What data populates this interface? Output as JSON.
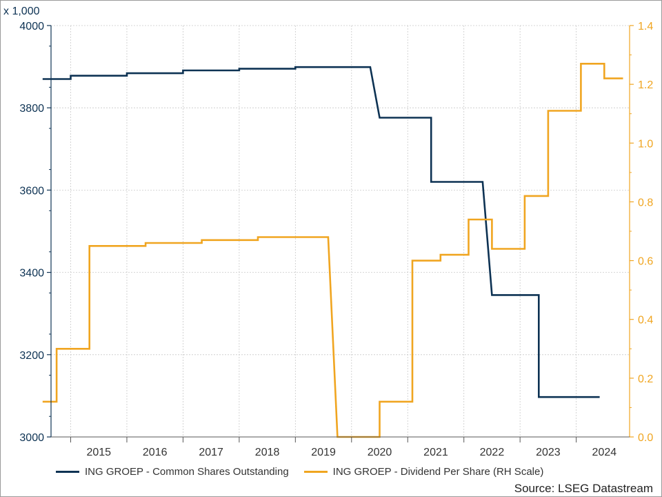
{
  "colors": {
    "left_series": "#0d3253",
    "right_series": "#f0a520",
    "left_axis": "#0d3253",
    "right_axis": "#f0a520",
    "grid": "#c8c8c8"
  },
  "source_text": "Source: LSEG Datastream",
  "chart_data": {
    "type": "line",
    "step": true,
    "x_tick_labels": [
      "2015",
      "2016",
      "2017",
      "2018",
      "2019",
      "2020",
      "2021",
      "2022",
      "2023",
      "2024"
    ],
    "xlim": [
      2014.65,
      2024.95
    ],
    "y_left": {
      "unit_label": "x 1,000",
      "ylim": [
        3000,
        4000
      ],
      "ticks": [
        "3000",
        "3200",
        "3400",
        "3600",
        "3800",
        "4000"
      ]
    },
    "y_right": {
      "ylim": [
        0,
        1.4
      ],
      "ticks": [
        "0.0",
        "0.2",
        "0.4",
        "0.6",
        "0.8",
        "1.0",
        "1.2",
        "1.4"
      ]
    },
    "grid": true,
    "legend_position": "bottom",
    "series": [
      {
        "name": "ING GROEP - Common Shares Outstanding",
        "axis": "left",
        "points": [
          [
            "2014-07",
            3870
          ],
          [
            "2015-01",
            3870
          ],
          [
            "2015-01",
            3878
          ],
          [
            "2016-01",
            3878
          ],
          [
            "2016-01",
            3884
          ],
          [
            "2017-01",
            3884
          ],
          [
            "2017-01",
            3891
          ],
          [
            "2018-01",
            3891
          ],
          [
            "2018-01",
            3895
          ],
          [
            "2019-01",
            3895
          ],
          [
            "2019-01",
            3899
          ],
          [
            "2020-05",
            3899
          ],
          [
            "2020-07",
            3776
          ],
          [
            "2021-06",
            3776
          ],
          [
            "2021-06",
            3620
          ],
          [
            "2022-05",
            3620
          ],
          [
            "2022-07",
            3345
          ],
          [
            "2023-05",
            3345
          ],
          [
            "2023-05",
            3097
          ],
          [
            "2024-06",
            3097
          ]
        ]
      },
      {
        "name": "ING GROEP - Dividend Per Share (RH Scale)",
        "axis": "right",
        "points": [
          [
            "2014-07",
            0.12
          ],
          [
            "2014-10",
            0.12
          ],
          [
            "2014-10",
            0.3
          ],
          [
            "2015-05",
            0.3
          ],
          [
            "2015-05",
            0.65
          ],
          [
            "2016-05",
            0.65
          ],
          [
            "2016-05",
            0.66
          ],
          [
            "2017-05",
            0.66
          ],
          [
            "2017-05",
            0.67
          ],
          [
            "2018-05",
            0.67
          ],
          [
            "2018-05",
            0.68
          ],
          [
            "2019-08",
            0.68
          ],
          [
            "2019-10",
            0.0
          ],
          [
            "2020-07",
            0.0
          ],
          [
            "2020-07",
            0.12
          ],
          [
            "2021-02",
            0.12
          ],
          [
            "2021-02",
            0.6
          ],
          [
            "2021-08",
            0.6
          ],
          [
            "2021-08",
            0.62
          ],
          [
            "2022-02",
            0.62
          ],
          [
            "2022-02",
            0.74
          ],
          [
            "2022-07",
            0.74
          ],
          [
            "2022-07",
            0.64
          ],
          [
            "2023-02",
            0.64
          ],
          [
            "2023-02",
            0.82
          ],
          [
            "2023-07",
            0.82
          ],
          [
            "2023-07",
            1.11
          ],
          [
            "2024-02",
            1.11
          ],
          [
            "2024-02",
            1.27
          ],
          [
            "2024-07",
            1.27
          ],
          [
            "2024-07",
            1.22
          ],
          [
            "2024-11",
            1.22
          ]
        ]
      }
    ]
  }
}
